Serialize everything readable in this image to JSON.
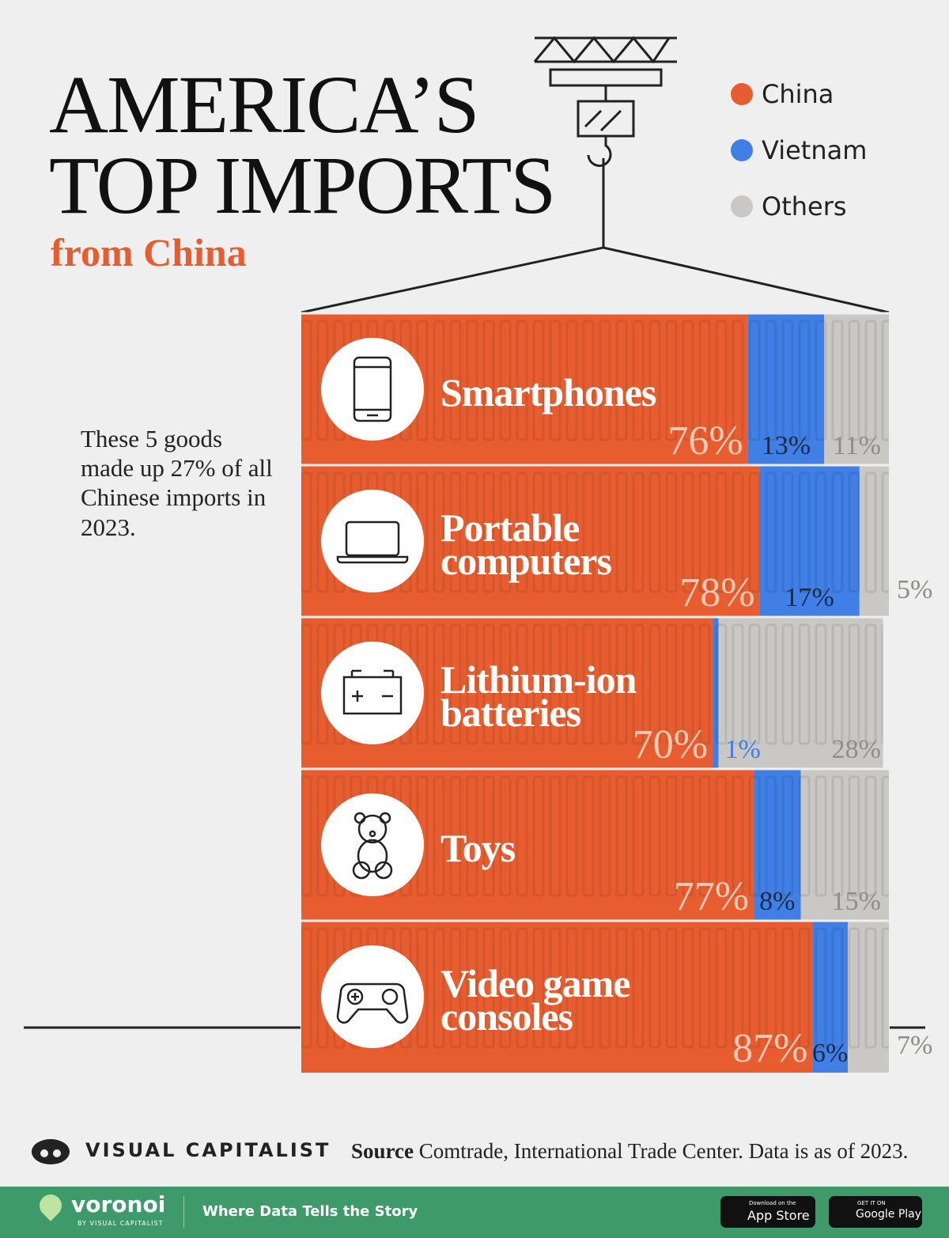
{
  "chart_data": {
    "type": "bar",
    "orientation": "horizontal",
    "stacked": true,
    "title": "AMERICA’S TOP IMPORTS",
    "subtitle": "from China",
    "annotation": "These 5 goods made up 27% of all Chinese imports in 2023.",
    "source_label": "Source",
    "source": "Comtrade, International Trade Center. Data is as of 2023.",
    "brand": "VISUAL CAPITALIST",
    "categories": [
      "Smartphones",
      "Portable computers",
      "Lithium-ion batteries",
      "Toys",
      "Video game consoles"
    ],
    "xlim": [
      0,
      100
    ],
    "legend_position": "top-right",
    "series": [
      {
        "name": "China",
        "color": "#e85d2f",
        "values": [
          76,
          78,
          70,
          77,
          87
        ],
        "value_labels": [
          "76%",
          "78%",
          "70%",
          "77%",
          "87%"
        ]
      },
      {
        "name": "Vietnam",
        "color": "#3f7fe6",
        "values": [
          13,
          17,
          1,
          8,
          6
        ],
        "value_labels": [
          "13%",
          "17%",
          "1%",
          "8%",
          "6%"
        ]
      },
      {
        "name": "Others",
        "color": "#c9c8c4",
        "values": [
          11,
          5,
          28,
          15,
          7
        ],
        "value_labels": [
          "11%",
          "5%",
          "28%",
          "15%",
          "7%"
        ]
      }
    ]
  },
  "footer": {
    "logo": "voronoi",
    "logo_sub": "BY VISUAL CAPITALIST",
    "tagline": "Where Data Tells the Story",
    "app_store_small": "Download on the",
    "app_store": "App Store",
    "google_small": "GET IT ON",
    "google": "Google Play"
  }
}
